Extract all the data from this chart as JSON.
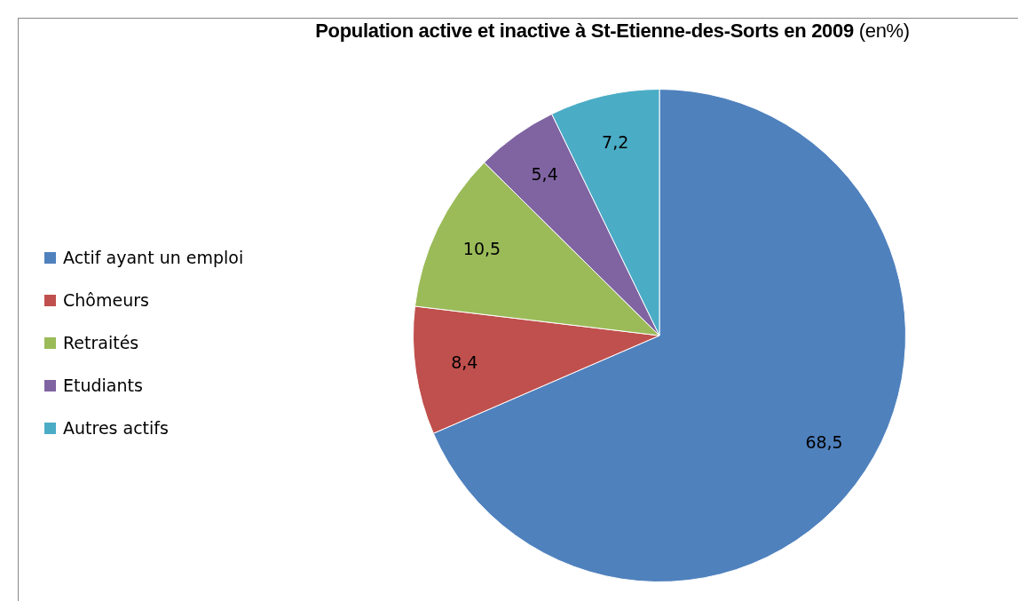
{
  "chart_data": {
    "type": "pie",
    "title": "Population active et inactive à St-Etienne-des-Sorts en 2009",
    "subtitle": "(en%)",
    "categories": [
      "Actif ayant un emploi",
      "Chômeurs",
      "Retraités",
      "Etudiants",
      "Autres actifs"
    ],
    "values": [
      68.5,
      8.4,
      10.5,
      5.4,
      7.2
    ],
    "colors": [
      "#4f81bd",
      "#c0504d",
      "#9bbb59",
      "#8064a2",
      "#4bacc6"
    ],
    "value_labels": [
      "68,5",
      "8,4",
      "10,5",
      "5,4",
      "7,2"
    ],
    "legend": "left"
  }
}
